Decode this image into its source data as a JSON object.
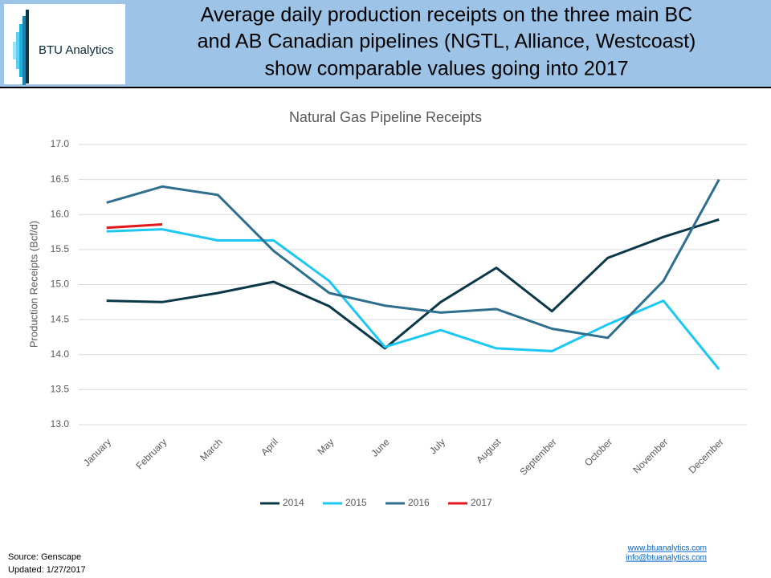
{
  "header": {
    "logo": "BTU Analytics",
    "title_lines": [
      "Average daily production receipts on the three main BC",
      "and AB Canadian pipelines (NGTL, Alliance, Westcoast)",
      "show comparable values going into 2017"
    ]
  },
  "chart_data": {
    "type": "line",
    "title": "Natural Gas Pipeline Receipts",
    "y_label": "Production Receipts (Bcf/d)",
    "categories": [
      "January",
      "February",
      "March",
      "April",
      "May",
      "June",
      "July",
      "August",
      "September",
      "October",
      "November",
      "December"
    ],
    "series": [
      {
        "name": "2014",
        "color": "#0b3848",
        "values": [
          14.77,
          14.75,
          14.88,
          15.04,
          14.69,
          14.09,
          14.75,
          15.24,
          14.62,
          15.38,
          15.68,
          15.93
        ]
      },
      {
        "name": "2015",
        "color": "#1cc8f2",
        "values": [
          15.76,
          15.79,
          15.63,
          15.63,
          15.05,
          14.11,
          14.35,
          14.09,
          14.05,
          14.43,
          14.77,
          13.79
        ]
      },
      {
        "name": "2016",
        "color": "#2f6f8d",
        "values": [
          16.17,
          16.4,
          16.28,
          15.48,
          14.88,
          14.7,
          14.6,
          14.65,
          14.37,
          14.24,
          15.05,
          16.5
        ]
      },
      {
        "name": "2017",
        "color": "#e3171b",
        "values": [
          15.81,
          15.86,
          null,
          null,
          null,
          null,
          null,
          null,
          null,
          null,
          null,
          null
        ]
      }
    ],
    "ylim": [
      13,
      17
    ],
    "yticks": [
      {
        "value": 13,
        "label": "13.0"
      },
      13.5,
      {
        "value": 14,
        "label": "14.0"
      },
      14.5,
      {
        "value": 15,
        "label": "15.0"
      },
      15.5,
      {
        "value": 16,
        "label": "16.0"
      },
      16.5,
      {
        "value": 17,
        "label": "17.0"
      }
    ],
    "grid": true,
    "legend": "bottom"
  },
  "footer": {
    "source": "Source: Genscape",
    "updated": "Updated: 1/27/2017",
    "website": "www.btuanalytics.com",
    "email": "info@btuanalytics.com"
  }
}
